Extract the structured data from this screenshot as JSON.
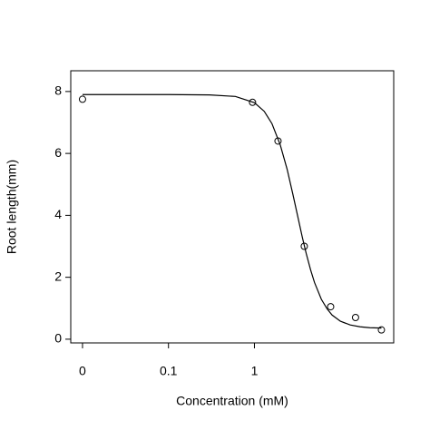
{
  "chart_data": {
    "type": "scatter",
    "xlabel": "Concentration (mM)",
    "ylabel": "Root length(mm)",
    "xscale": "log",
    "xlim": [
      0.0073,
      41.7
    ],
    "ylim": [
      -0.12,
      8.67
    ],
    "xticks": [
      {
        "value": 0.01,
        "label": "0"
      },
      0.1,
      1
    ],
    "yticks": [
      0,
      2,
      4,
      6,
      8
    ],
    "color": "#000000",
    "points": {
      "x": [
        0.01,
        0.95,
        1.88,
        3.8,
        7.7,
        15,
        30
      ],
      "values": [
        7.75,
        7.65,
        6.4,
        3.0,
        1.05,
        0.7,
        0.3
      ]
    },
    "curve": {
      "x": [
        0.01,
        0.1,
        0.3,
        0.6,
        1,
        1.3,
        1.6,
        2,
        2.4,
        2.8,
        3.2,
        3.6,
        4,
        4.5,
        5,
        6,
        7,
        8,
        10,
        13,
        17,
        22,
        30
      ],
      "values": [
        7.9,
        7.9,
        7.89,
        7.84,
        7.64,
        7.36,
        6.96,
        6.27,
        5.49,
        4.68,
        3.95,
        3.3,
        2.77,
        2.24,
        1.83,
        1.29,
        0.98,
        0.78,
        0.58,
        0.46,
        0.4,
        0.37,
        0.36
      ]
    }
  }
}
